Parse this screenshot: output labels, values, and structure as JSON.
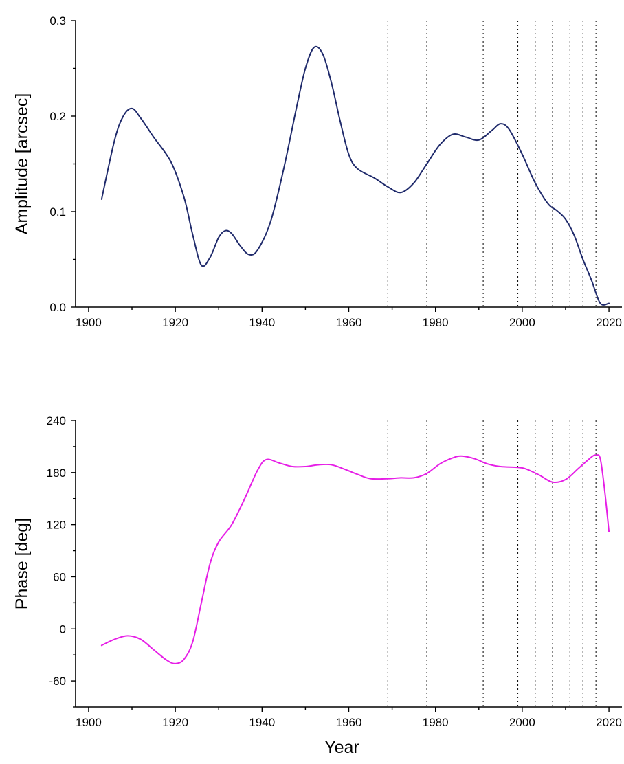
{
  "chart_data": [
    {
      "type": "line",
      "title": "",
      "xlabel": "",
      "ylabel": "Amplitude [arcsec]",
      "xlim": [
        1897,
        2023
      ],
      "ylim": [
        0.0,
        0.3
      ],
      "xticks": [
        1900,
        1920,
        1940,
        1960,
        1980,
        2000,
        2020
      ],
      "xtick_labels": [
        "1900",
        "1920",
        "1940",
        "1960",
        "1980",
        "2000",
        "2020"
      ],
      "yticks": [
        0.0,
        0.1,
        0.2,
        0.3
      ],
      "ytick_labels": [
        "0.0",
        "0.1",
        "0.2",
        "0.3"
      ],
      "grid": false,
      "vertical_reference_lines": [
        1969,
        1978,
        1991,
        1999,
        2003,
        2007,
        2011,
        2014,
        2017
      ],
      "series": [
        {
          "name": "Amplitude",
          "color": "#1f2a6b",
          "x": [
            1903,
            1906,
            1908,
            1910,
            1912,
            1915,
            1919,
            1922,
            1924,
            1926,
            1928,
            1930,
            1931.5,
            1933,
            1935,
            1937,
            1939,
            1942,
            1945,
            1948,
            1950,
            1952,
            1954,
            1956,
            1958,
            1960,
            1962,
            1966,
            1969,
            1972,
            1975,
            1978,
            1981,
            1984,
            1987,
            1990,
            1993,
            1995,
            1997,
            2000,
            2003,
            2006,
            2008,
            2010,
            2012,
            2014,
            2016,
            2018,
            2020
          ],
          "y": [
            0.113,
            0.175,
            0.2,
            0.208,
            0.198,
            0.178,
            0.152,
            0.115,
            0.076,
            0.044,
            0.052,
            0.073,
            0.08,
            0.077,
            0.064,
            0.055,
            0.06,
            0.09,
            0.145,
            0.21,
            0.25,
            0.272,
            0.265,
            0.235,
            0.195,
            0.16,
            0.145,
            0.135,
            0.126,
            0.12,
            0.13,
            0.15,
            0.17,
            0.181,
            0.178,
            0.175,
            0.185,
            0.192,
            0.186,
            0.16,
            0.13,
            0.108,
            0.101,
            0.092,
            0.075,
            0.05,
            0.028,
            0.004,
            0.004
          ]
        }
      ]
    },
    {
      "type": "line",
      "title": "",
      "xlabel": "Year",
      "ylabel": "Phase [deg]",
      "xlim": [
        1897,
        2023
      ],
      "ylim": [
        -90,
        240
      ],
      "xticks": [
        1900,
        1920,
        1940,
        1960,
        1980,
        2000,
        2020
      ],
      "xtick_labels": [
        "1900",
        "1920",
        "1940",
        "1960",
        "1980",
        "2000",
        "2020"
      ],
      "yticks": [
        -60,
        0,
        60,
        120,
        180,
        240
      ],
      "ytick_labels": [
        "-60",
        "0",
        "60",
        "120",
        "180",
        "240"
      ],
      "grid": false,
      "vertical_reference_lines": [
        1969,
        1978,
        1991,
        1999,
        2003,
        2007,
        2011,
        2014,
        2017
      ],
      "series": [
        {
          "name": "Phase",
          "color": "#e61ee6",
          "x": [
            1903,
            1906,
            1909,
            1912,
            1915,
            1918,
            1920,
            1922,
            1924,
            1926,
            1928,
            1930,
            1933,
            1936,
            1939,
            1941,
            1944,
            1947,
            1950,
            1953,
            1956,
            1959,
            1962,
            1965,
            1969,
            1972,
            1975,
            1978,
            1981,
            1984,
            1986,
            1989,
            1992,
            1995,
            1999,
            2001,
            2004,
            2007,
            2010,
            2013,
            2016,
            2017,
            2018,
            2019,
            2020
          ],
          "y": [
            -19,
            -12,
            -8,
            -12,
            -24,
            -36,
            -40,
            -35,
            -15,
            30,
            75,
            100,
            120,
            150,
            183,
            195,
            191,
            187,
            187,
            189,
            189,
            184,
            178,
            173,
            173,
            174,
            174,
            179,
            190,
            197,
            199,
            196,
            190,
            187,
            186,
            184,
            177,
            169,
            172,
            185,
            198,
            200,
            196,
            160,
            112
          ]
        }
      ]
    }
  ]
}
